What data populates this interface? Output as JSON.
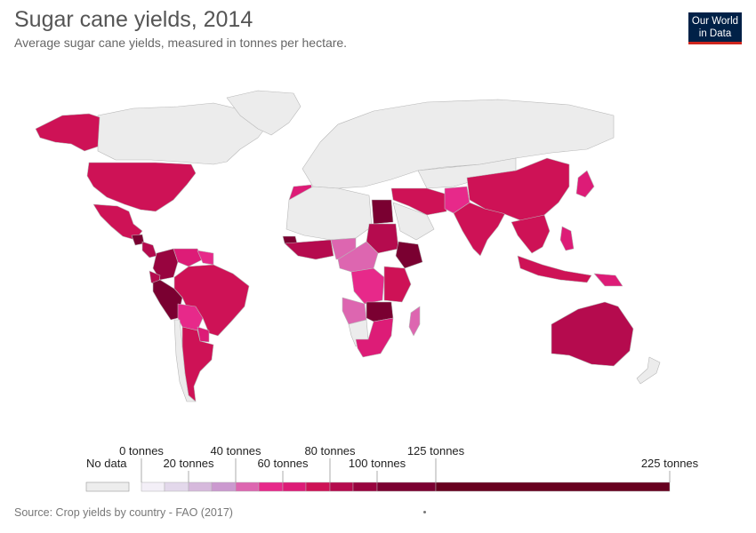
{
  "title": "Sugar cane yields, 2014",
  "subtitle": "Average sugar cane yields, measured in tonnes per hectare.",
  "logo": {
    "line1": "Our World",
    "line2": "in Data"
  },
  "source": "Source: Crop yields by country - FAO (2017)",
  "colors": {
    "no_data": "#ededed",
    "land_no_data": "#ececec",
    "ocean": "#ffffff",
    "border": "#b8b8b8",
    "scale": [
      "#f3eff7",
      "#e3d8eb",
      "#d6b9dc",
      "#cb99cf",
      "#dd66b0",
      "#e7298a",
      "#dd1c77",
      "#ce1256",
      "#b50b4e",
      "#98043f",
      "#7a0031",
      "#67001f"
    ]
  },
  "legend": {
    "no_data_label": "No data",
    "upper_labels": [
      "0 tonnes",
      "40 tonnes",
      "80 tonnes",
      "125 tonnes"
    ],
    "lower_labels": [
      "20 tonnes",
      "60 tonnes",
      "100 tonnes",
      "225 tonnes"
    ],
    "breaks": [
      0,
      10,
      20,
      30,
      40,
      50,
      60,
      70,
      80,
      90,
      100,
      125,
      225
    ]
  },
  "regions": [
    {
      "name": "Canada / Russia / Europe / Greenland",
      "value": null
    },
    {
      "name": "Alaska",
      "value": 72
    },
    {
      "name": "United States",
      "value": 74
    },
    {
      "name": "Mexico",
      "value": 75
    },
    {
      "name": "Guatemala",
      "value": 118
    },
    {
      "name": "Central America",
      "value": 80
    },
    {
      "name": "Colombia",
      "value": 90
    },
    {
      "name": "Venezuela",
      "value": 68
    },
    {
      "name": "Guyana / Suriname",
      "value": 55
    },
    {
      "name": "Brazil",
      "value": 76
    },
    {
      "name": "Peru",
      "value": 120
    },
    {
      "name": "Ecuador",
      "value": 85
    },
    {
      "name": "Bolivia",
      "value": 58
    },
    {
      "name": "Paraguay",
      "value": 62
    },
    {
      "name": "Argentina",
      "value": 70
    },
    {
      "name": "Chile",
      "value": null
    },
    {
      "name": "Morocco",
      "value": 62
    },
    {
      "name": "Algeria / Sahara",
      "value": null
    },
    {
      "name": "West Africa",
      "value": 80
    },
    {
      "name": "Senegal",
      "value": 110
    },
    {
      "name": "Nigeria / Niger",
      "value": 40
    },
    {
      "name": "Egypt",
      "value": 118
    },
    {
      "name": "Sudan",
      "value": 85
    },
    {
      "name": "Ethiopia",
      "value": 100
    },
    {
      "name": "Central Africa",
      "value": 45
    },
    {
      "name": "DR Congo",
      "value": 50
    },
    {
      "name": "Kenya / Uganda / Tanzania",
      "value": 75
    },
    {
      "name": "Malawi / Zambia",
      "value": 110
    },
    {
      "name": "Angola",
      "value": 40
    },
    {
      "name": "Namibia",
      "value": null
    },
    {
      "name": "South Africa",
      "value": 65
    },
    {
      "name": "Madagascar",
      "value": 45
    },
    {
      "name": "Iran / Middle East",
      "value": 75
    },
    {
      "name": "Saudi Arabia",
      "value": null
    },
    {
      "name": "Pakistan / Afghanistan",
      "value": 50
    },
    {
      "name": "India",
      "value": 72
    },
    {
      "name": "China",
      "value": 72
    },
    {
      "name": "Mongolia / Kazakhstan",
      "value": null
    },
    {
      "name": "Southeast Asia",
      "value": 70
    },
    {
      "name": "Japan",
      "value": 64
    },
    {
      "name": "Philippines",
      "value": 62
    },
    {
      "name": "Indonesia",
      "value": 70
    },
    {
      "name": "Papua New Guinea",
      "value": 62
    },
    {
      "name": "Australia",
      "value": 82
    },
    {
      "name": "New Zealand",
      "value": null
    }
  ]
}
